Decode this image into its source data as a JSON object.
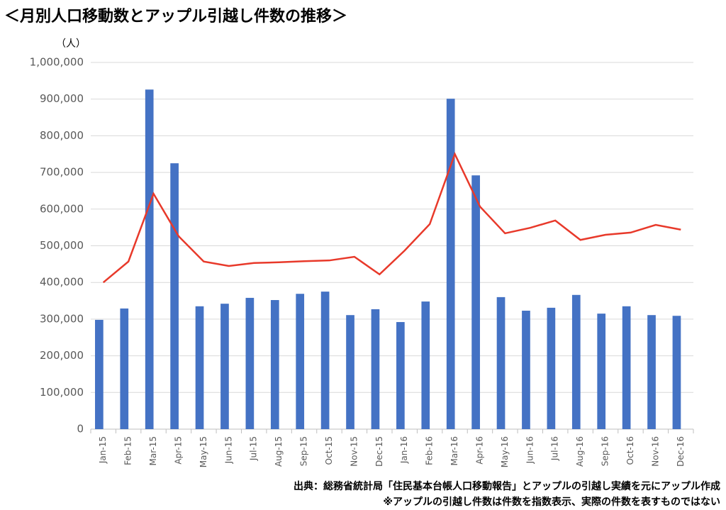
{
  "chart_data": {
    "type": "bar-line",
    "title": "＜月別人口移動数とアップル引越し件数の推移＞",
    "y_unit": "（人）",
    "source": "出典：総務省統計局「住民基本台帳人口移動報告」とアップルの引越し実績を元にアップル作成",
    "note": "※アップルの引越し件数は件数を指数表示、実際の件数を表すものではない",
    "categories": [
      "Jan-15",
      "Feb-15",
      "Mar-15",
      "Apr-15",
      "May-15",
      "Jun-15",
      "Jul-15",
      "Aug-15",
      "Sep-15",
      "Oct-15",
      "Nov-15",
      "Dec-15",
      "Jan-16",
      "Feb-16",
      "Mar-16",
      "Apr-16",
      "May-16",
      "Jun-16",
      "Jul-16",
      "Aug-16",
      "Sep-16",
      "Oct-16",
      "Nov-16",
      "Dec-16"
    ],
    "series": [
      {
        "type": "bar",
        "color": "#4472c4",
        "values": [
          298000,
          329000,
          926000,
          725000,
          335000,
          342000,
          358000,
          352000,
          369000,
          375000,
          311000,
          327000,
          292000,
          348000,
          901000,
          692000,
          360000,
          323000,
          331000,
          366000,
          315000,
          335000,
          311000,
          309000
        ]
      },
      {
        "type": "line",
        "color": "#e8392a",
        "values": [
          400000,
          457000,
          642000,
          526000,
          457000,
          445000,
          453000,
          455000,
          458000,
          460000,
          470000,
          422000,
          487000,
          559000,
          750000,
          607000,
          534000,
          549000,
          569000,
          516000,
          530000,
          536000,
          557000,
          544000
        ]
      }
    ],
    "ylim": [
      0,
      1000000
    ],
    "yticks": [
      0,
      {
        "value": 100000,
        "label": "100,000"
      },
      {
        "value": 200000,
        "label": "200,000"
      },
      {
        "value": 300000,
        "label": "300,000"
      },
      {
        "value": 400000,
        "label": "400,000"
      },
      {
        "value": 500000,
        "label": "500,000"
      },
      {
        "value": 600000,
        "label": "600,000"
      },
      {
        "value": 700000,
        "label": "700,000"
      },
      {
        "value": 800000,
        "label": "800,000"
      },
      {
        "value": 900000,
        "label": "900,000"
      },
      {
        "value": 1000000,
        "label": "1,000,000"
      }
    ],
    "grid": true
  }
}
